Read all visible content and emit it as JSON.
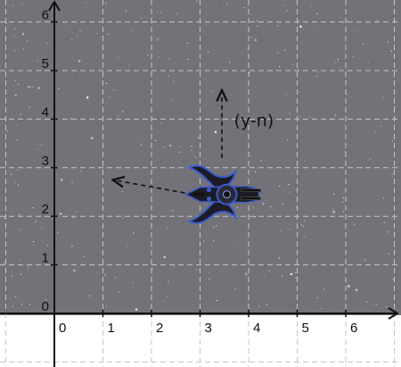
{
  "colors": {
    "sky": "#727278",
    "lower_background": "#ffffff",
    "grid": "#c4c4c8",
    "axis": "#111111",
    "arrow": "#111111",
    "ship_body": "#1c1c26",
    "ship_accent": "#3c5ccc"
  },
  "axes": {
    "x_ticks": [
      "0",
      "1",
      "2",
      "3",
      "4",
      "5",
      "6"
    ],
    "y_ticks": [
      "0",
      "1",
      "2",
      "3",
      "4",
      "5",
      "6"
    ],
    "x_range": [
      -1,
      7
    ],
    "y_range": [
      -1,
      6.4
    ]
  },
  "ship": {
    "icon": "spaceship-icon",
    "x": 3.55,
    "y": 2.45
  },
  "arrows": [
    {
      "name": "arrow-left",
      "from": [
        2.85,
        2.45
      ],
      "to": [
        1.2,
        2.75
      ]
    },
    {
      "name": "arrow-up",
      "from": [
        3.45,
        3.2
      ],
      "to": [
        3.45,
        4.6
      ]
    }
  ],
  "annotation": {
    "text": "(y-n)",
    "x": 3.7,
    "y": 3.85
  }
}
